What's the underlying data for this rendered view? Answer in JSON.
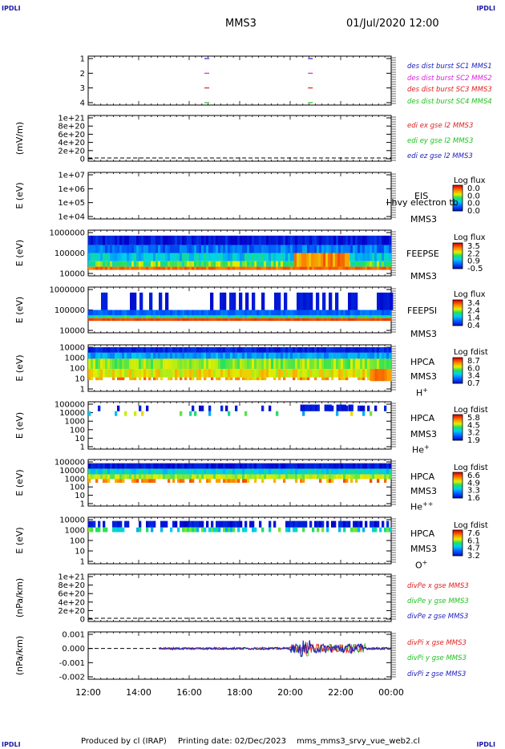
{
  "corners": {
    "top_left": "IPDLI",
    "top_right": "IPDLI",
    "bottom_left": "IPDLI",
    "bottom_right": "IPDLI"
  },
  "header": {
    "spacecraft": "MMS3",
    "datetime": "01/Jul/2020 12:00"
  },
  "footer": {
    "produced": "Produced by cl (IRAP)",
    "printing": "Printing date: 02/Dec/2023",
    "file": "mms_mms3_srvy_vue_web2.cl"
  },
  "time_axis": {
    "ticks": [
      "12:00",
      "14:00",
      "16:00",
      "18:00",
      "20:00",
      "22:00",
      "00:00"
    ],
    "range_hours": [
      12,
      24
    ]
  },
  "chart_data": [
    {
      "id": "burst",
      "type": "scatter",
      "ylabels": [
        "1",
        "2",
        "3",
        "4"
      ],
      "legend": [
        {
          "text": "des dist burst SC1 MMS1",
          "color": "#2020c0"
        },
        {
          "text": "des dist burst SC2 MMS2",
          "color": "#e020e0"
        },
        {
          "text": "des dist burst SC3 MMS3",
          "color": "#e02020"
        },
        {
          "text": "des dist burst SC4 MMS4",
          "color": "#20c020"
        }
      ],
      "markers_hours": [
        16.7,
        20.8
      ]
    },
    {
      "id": "edi",
      "type": "line",
      "ylabel": "(mV/m)",
      "ylabels": [
        "1e+21",
        "8e+20",
        "6e+20",
        "4e+20",
        "2e+20",
        "0"
      ],
      "legend": [
        {
          "text": "edi ex gse l2 MMS3",
          "color": "#e02020"
        },
        {
          "text": "edi ey gse l2 MMS3",
          "color": "#20c020"
        },
        {
          "text": "edi ez gse l2 MMS3",
          "color": "#2020c0"
        }
      ]
    },
    {
      "id": "eis",
      "type": "heatmap",
      "ylabel": "E (eV)",
      "ylabels": [
        "1e+07",
        "1e+06",
        "1e+05",
        "1e+04"
      ],
      "inst": "EIS",
      "sc": "MMS3",
      "overlay": "l hvy electron tb",
      "cbar_title": "Log flux",
      "cbar": [
        "0.0",
        "0.0",
        "0.0",
        "0.0"
      ],
      "empty": true
    },
    {
      "id": "feepse",
      "type": "heatmap",
      "ylabel": "E (eV)",
      "ylabels": [
        "1000000",
        "100000",
        "10000"
      ],
      "inst": "FEEPSE",
      "sc": "MMS3",
      "cbar_title": "Log flux",
      "cbar": [
        "3.5",
        "2.2",
        "0.9",
        "-0.5"
      ]
    },
    {
      "id": "feepsi",
      "type": "heatmap",
      "ylabel": "E (eV)",
      "ylabels": [
        "1000000",
        "100000",
        "10000"
      ],
      "inst": "FEEPSI",
      "sc": "MMS3",
      "cbar_title": "Log flux",
      "cbar": [
        "3.4",
        "2.4",
        "1.4",
        "0.4"
      ]
    },
    {
      "id": "hpca_h",
      "type": "heatmap",
      "ylabel": "E (eV)",
      "ylabels": [
        "10000",
        "1000",
        "100",
        "10",
        "1"
      ],
      "inst": "HPCA",
      "sc": "MMS3",
      "species": "H",
      "charge": "+",
      "cbar_title": "Log fdist",
      "cbar": [
        "8.7",
        "6.0",
        "3.4",
        "0.7"
      ]
    },
    {
      "id": "hpca_he1",
      "type": "heatmap",
      "ylabel": "E (eV)",
      "ylabels": [
        "100000",
        "10000",
        "1000",
        "100",
        "10",
        "1"
      ],
      "inst": "HPCA",
      "sc": "MMS3",
      "species": "He",
      "charge": "+",
      "cbar_title": "Log fdist",
      "cbar": [
        "5.8",
        "4.5",
        "3.2",
        "1.9"
      ]
    },
    {
      "id": "hpca_he2",
      "type": "heatmap",
      "ylabel": "E (eV)",
      "ylabels": [
        "100000",
        "10000",
        "1000",
        "100",
        "10",
        "1"
      ],
      "inst": "HPCA",
      "sc": "MMS3",
      "species": "He",
      "charge": "++",
      "cbar_title": "Log fdist",
      "cbar": [
        "6.6",
        "4.9",
        "3.3",
        "1.6"
      ]
    },
    {
      "id": "hpca_o",
      "type": "heatmap",
      "ylabel": "E (eV)",
      "ylabels": [
        "10000",
        "1000",
        "100",
        "10",
        "1"
      ],
      "inst": "HPCA",
      "sc": "MMS3",
      "species": "O",
      "charge": "+",
      "cbar_title": "Log fdist",
      "cbar": [
        "7.6",
        "6.1",
        "4.7",
        "3.2"
      ]
    },
    {
      "id": "divpe",
      "type": "line",
      "ylabel": "(nPa/km)",
      "ylabels": [
        "1e+21",
        "8e+20",
        "6e+20",
        "4e+20",
        "2e+20",
        "0"
      ],
      "legend": [
        {
          "text": "divPe x gse MMS3",
          "color": "#e02020"
        },
        {
          "text": "divPe y gse MMS3",
          "color": "#20c020"
        },
        {
          "text": "divPe z gse MMS3",
          "color": "#2020c0"
        }
      ]
    },
    {
      "id": "divpi",
      "type": "line",
      "ylabel": "(nPa/km)",
      "ylabels": [
        "0.001",
        "0.000",
        "-0.001",
        "-0.002"
      ],
      "legend": [
        {
          "text": "divPi x gse MMS3",
          "color": "#e02020"
        },
        {
          "text": "divPi y gse MMS3",
          "color": "#20c020"
        },
        {
          "text": "divPi z gse MMS3",
          "color": "#2020c0"
        }
      ]
    }
  ]
}
